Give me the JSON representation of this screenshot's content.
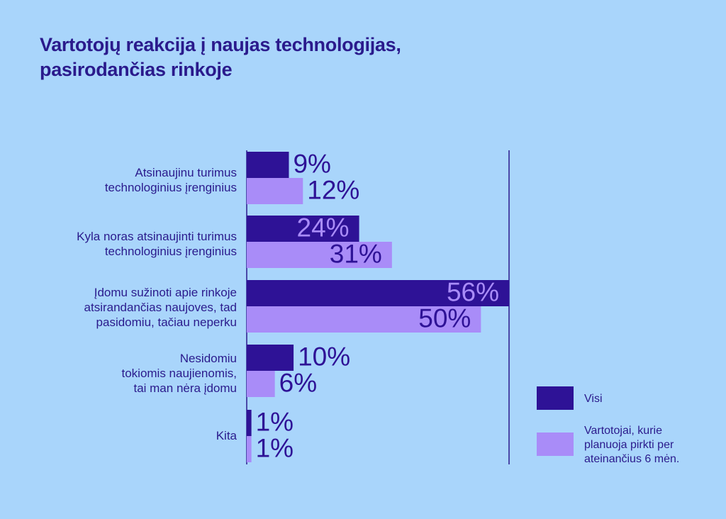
{
  "chart_data": {
    "type": "bar",
    "orientation": "horizontal",
    "title_line1": "Vartotojų reakcija į naujas technologijas,",
    "title_line2": "pasirodančias rinkoje",
    "categories": [
      "Atsinaujinu turimus\ntechnologinius įrenginius",
      "Kyla noras atsinaujinti turimus\ntechnologinius įrenginius",
      "Įdomu sužinoti apie rinkoje\natsirandančias naujoves, tad\npasidomiu, tačiau neperku",
      "Nesidomiu\ntokiomis naujienomis,\ntai man nėra įdomu",
      "Kita"
    ],
    "series": [
      {
        "name": "Visi",
        "color": "#2e1296",
        "values": [
          9,
          24,
          56,
          10,
          1
        ],
        "labels": [
          "9%",
          "24%",
          "56%",
          "10%",
          "1%"
        ]
      },
      {
        "name": "Vartotojai, kurie\nplanuoja pirkti per\nateinančius 6 mėn.",
        "color": "#a98cf8",
        "values": [
          12,
          31,
          50,
          6,
          1
        ],
        "labels": [
          "12%",
          "31%",
          "50%",
          "6%",
          "1%"
        ]
      }
    ],
    "xlim": [
      0,
      56
    ],
    "legend_position": "bottom-right"
  },
  "colors": {
    "background": "#a9d5fb",
    "text": "#2a1a8c",
    "inside_label_light": "#a98cf8",
    "inside_label_dark": "#2e1296"
  }
}
